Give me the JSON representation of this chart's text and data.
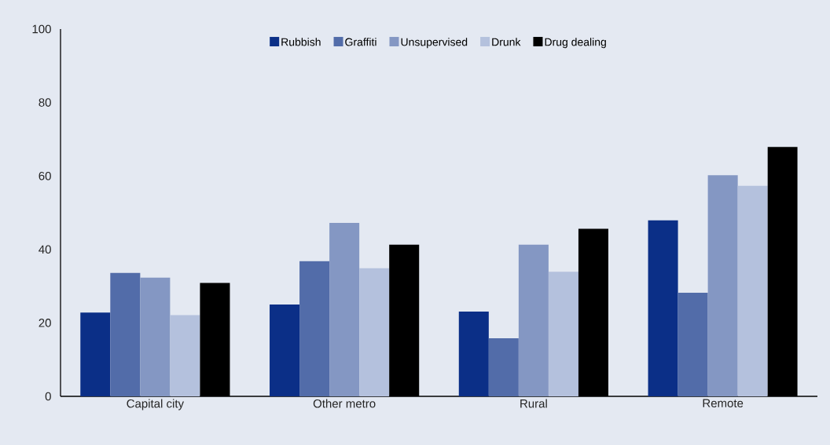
{
  "chart_data": {
    "type": "bar",
    "categories": [
      "Capital city",
      "Other metro",
      "Rural",
      "Remote"
    ],
    "series": [
      {
        "name": "Rubbish",
        "color": "#0b2f87",
        "values": [
          22.8,
          25.0,
          23.1,
          47.9
        ]
      },
      {
        "name": "Graffiti",
        "color": "#526ca9",
        "values": [
          33.6,
          36.8,
          15.8,
          28.2
        ]
      },
      {
        "name": "Unsupervised",
        "color": "#8497c3",
        "values": [
          32.3,
          47.2,
          41.3,
          60.2
        ]
      },
      {
        "name": "Drunk",
        "color": "#b4c1dd",
        "values": [
          22.1,
          34.9,
          33.9,
          57.3
        ]
      },
      {
        "name": "Drug dealing",
        "color": "#000000",
        "values": [
          30.9,
          41.3,
          45.6,
          67.9
        ]
      }
    ],
    "ylim": [
      0,
      100
    ],
    "yticks": [
      0,
      20,
      40,
      60,
      80,
      100
    ],
    "grid": false,
    "legend": "top"
  }
}
